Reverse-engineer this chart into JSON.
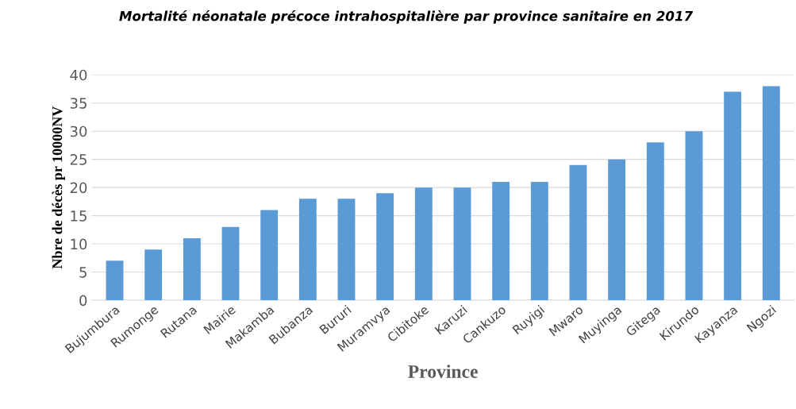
{
  "chart_data": {
    "type": "bar",
    "title": "Mortalité néonatale précoce intrahospitalière par province sanitaire en 2017",
    "xlabel": "Province",
    "ylabel": "Nbre de décès pr 10000NV",
    "categories": [
      "Bujumbura",
      "Rumonge",
      "Rutana",
      "Mairie",
      "Makamba",
      "Bubanza",
      "Bururi",
      "Muramvya",
      "Cibitoke",
      "Karuzi",
      "Cankuzo",
      "Ruyigi",
      "Mwaro",
      "Muyinga",
      "Gitega",
      "Kirundo",
      "Kayanza",
      "Ngozi"
    ],
    "values": [
      7,
      9,
      11,
      13,
      16,
      18,
      18,
      19,
      20,
      20,
      21,
      21,
      24,
      25,
      28,
      30,
      37,
      38
    ],
    "color": "#5b9bd5",
    "ylim": [
      0,
      40
    ],
    "yticks": [
      0,
      5,
      10,
      15,
      20,
      25,
      30,
      35,
      40
    ],
    "grid": "y",
    "legend": false
  }
}
